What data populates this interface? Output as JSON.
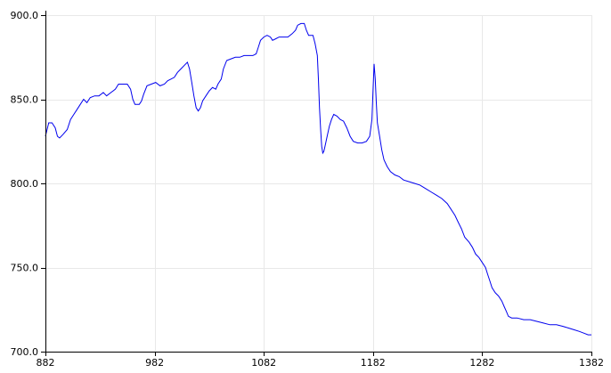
{
  "chart_data": {
    "type": "line",
    "title": "",
    "xlabel": "",
    "ylabel": "",
    "xlim": [
      882,
      1382
    ],
    "ylim": [
      700,
      900
    ],
    "grid": true,
    "x_ticks": [
      882,
      982,
      1082,
      1182,
      1282,
      1382
    ],
    "x_tick_labels": [
      "882",
      "982",
      "1082",
      "1182",
      "1282",
      "1382"
    ],
    "y_ticks": [
      700,
      750,
      800,
      850,
      900
    ],
    "y_tick_labels": [
      "700.0",
      "750.0",
      "800.0",
      "850.0",
      "900.0"
    ],
    "series": [
      {
        "color": "#0000ee",
        "points": [
          [
            882,
            828
          ],
          [
            885,
            836
          ],
          [
            888,
            836
          ],
          [
            891,
            833
          ],
          [
            893,
            828
          ],
          [
            895,
            827
          ],
          [
            898,
            829
          ],
          [
            902,
            832
          ],
          [
            905,
            838
          ],
          [
            908,
            841
          ],
          [
            911,
            844
          ],
          [
            914,
            847
          ],
          [
            917,
            850
          ],
          [
            920,
            848
          ],
          [
            923,
            851
          ],
          [
            927,
            852
          ],
          [
            931,
            852
          ],
          [
            935,
            854
          ],
          [
            938,
            852
          ],
          [
            942,
            854
          ],
          [
            946,
            856
          ],
          [
            949,
            859
          ],
          [
            953,
            859
          ],
          [
            957,
            859
          ],
          [
            960,
            856
          ],
          [
            962,
            850
          ],
          [
            964,
            847
          ],
          [
            968,
            847
          ],
          [
            970,
            849
          ],
          [
            972,
            853
          ],
          [
            975,
            858
          ],
          [
            979,
            859
          ],
          [
            983,
            860
          ],
          [
            987,
            858
          ],
          [
            991,
            859
          ],
          [
            994,
            861
          ],
          [
            997,
            862
          ],
          [
            1000,
            863
          ],
          [
            1003,
            866
          ],
          [
            1006,
            868
          ],
          [
            1009,
            870
          ],
          [
            1012,
            872
          ],
          [
            1014,
            868
          ],
          [
            1016,
            860
          ],
          [
            1018,
            852
          ],
          [
            1020,
            845
          ],
          [
            1022,
            843
          ],
          [
            1024,
            845
          ],
          [
            1026,
            849
          ],
          [
            1029,
            852
          ],
          [
            1032,
            855
          ],
          [
            1035,
            857
          ],
          [
            1038,
            856
          ],
          [
            1040,
            859
          ],
          [
            1043,
            862
          ],
          [
            1045,
            868
          ],
          [
            1048,
            873
          ],
          [
            1052,
            874
          ],
          [
            1056,
            875
          ],
          [
            1060,
            875
          ],
          [
            1064,
            876
          ],
          [
            1068,
            876
          ],
          [
            1072,
            876
          ],
          [
            1075,
            877
          ],
          [
            1077,
            881
          ],
          [
            1079,
            885
          ],
          [
            1082,
            887
          ],
          [
            1085,
            888
          ],
          [
            1088,
            887
          ],
          [
            1090,
            885
          ],
          [
            1093,
            886
          ],
          [
            1096,
            887
          ],
          [
            1100,
            887
          ],
          [
            1104,
            887
          ],
          [
            1108,
            889
          ],
          [
            1111,
            891
          ],
          [
            1113,
            894
          ],
          [
            1116,
            895
          ],
          [
            1119,
            895
          ],
          [
            1121,
            891
          ],
          [
            1123,
            888
          ],
          [
            1127,
            888
          ],
          [
            1129,
            883
          ],
          [
            1131,
            876
          ],
          [
            1132,
            862
          ],
          [
            1133,
            845
          ],
          [
            1134,
            832
          ],
          [
            1135,
            822
          ],
          [
            1136,
            818
          ],
          [
            1137,
            819
          ],
          [
            1138,
            822
          ],
          [
            1140,
            828
          ],
          [
            1142,
            834
          ],
          [
            1144,
            838
          ],
          [
            1146,
            841
          ],
          [
            1149,
            840
          ],
          [
            1152,
            838
          ],
          [
            1155,
            837
          ],
          [
            1158,
            833
          ],
          [
            1161,
            828
          ],
          [
            1164,
            825
          ],
          [
            1168,
            824
          ],
          [
            1172,
            824
          ],
          [
            1176,
            825
          ],
          [
            1179,
            828
          ],
          [
            1181,
            838
          ],
          [
            1182,
            855
          ],
          [
            1183,
            871
          ],
          [
            1184,
            862
          ],
          [
            1185,
            848
          ],
          [
            1186,
            836
          ],
          [
            1188,
            828
          ],
          [
            1190,
            820
          ],
          [
            1192,
            814
          ],
          [
            1195,
            810
          ],
          [
            1198,
            807
          ],
          [
            1202,
            805
          ],
          [
            1206,
            804
          ],
          [
            1210,
            802
          ],
          [
            1215,
            801
          ],
          [
            1220,
            800
          ],
          [
            1225,
            799
          ],
          [
            1230,
            797
          ],
          [
            1235,
            795
          ],
          [
            1240,
            793
          ],
          [
            1245,
            791
          ],
          [
            1250,
            788
          ],
          [
            1254,
            784
          ],
          [
            1257,
            781
          ],
          [
            1260,
            777
          ],
          [
            1263,
            773
          ],
          [
            1266,
            768
          ],
          [
            1270,
            765
          ],
          [
            1273,
            762
          ],
          [
            1276,
            758
          ],
          [
            1279,
            756
          ],
          [
            1282,
            753
          ],
          [
            1285,
            750
          ],
          [
            1287,
            746
          ],
          [
            1289,
            742
          ],
          [
            1291,
            738
          ],
          [
            1294,
            735
          ],
          [
            1297,
            733
          ],
          [
            1300,
            730
          ],
          [
            1302,
            727
          ],
          [
            1304,
            724
          ],
          [
            1306,
            721
          ],
          [
            1309,
            720
          ],
          [
            1314,
            720
          ],
          [
            1320,
            719
          ],
          [
            1326,
            719
          ],
          [
            1332,
            718
          ],
          [
            1338,
            717
          ],
          [
            1344,
            716
          ],
          [
            1350,
            716
          ],
          [
            1356,
            715
          ],
          [
            1361,
            714
          ],
          [
            1366,
            713
          ],
          [
            1371,
            712
          ],
          [
            1375,
            711
          ],
          [
            1379,
            710
          ],
          [
            1382,
            710
          ]
        ]
      }
    ]
  }
}
